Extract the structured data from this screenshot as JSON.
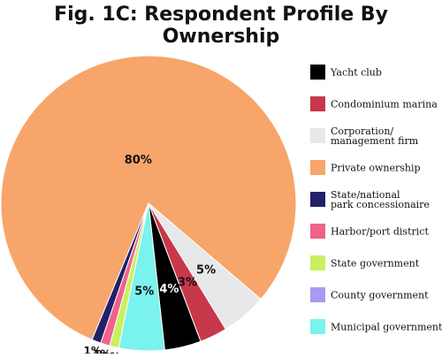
{
  "chart_data": {
    "type": "pie",
    "title": "Fig. 1C: Respondent Profile By Ownership",
    "slices": [
      {
        "name": "Yacht club",
        "label_lines": [
          "Yacht club"
        ],
        "value": 4,
        "data_label": "4%",
        "color": "#000000",
        "label_color": "#ffffff"
      },
      {
        "name": "Condominium marina",
        "label_lines": [
          "Condominium marina"
        ],
        "value": 3,
        "data_label": "3%",
        "color": "#c8384b",
        "label_color": "#111111"
      },
      {
        "name": "Corporation/management firm",
        "label_lines": [
          "Corporation/",
          "management firm"
        ],
        "value": 5,
        "data_label": "5%",
        "color": "#e6e8ea",
        "label_color": "#111111"
      },
      {
        "name": "Private ownership",
        "label_lines": [
          "Private ownership"
        ],
        "value": 80,
        "data_label": "80%",
        "color": "#f7a56a",
        "label_color": "#111111"
      },
      {
        "name": "State/national park concessionaire",
        "label_lines": [
          "State/national",
          "park concessionaire"
        ],
        "value": 1,
        "data_label": "1%",
        "color": "#231f6b",
        "label_color": "#111111"
      },
      {
        "name": "Harbor/port district",
        "label_lines": [
          "Harbor/port district"
        ],
        "value": 1,
        "data_label": "1%",
        "color": "#f0628a",
        "label_color": "#111111"
      },
      {
        "name": "State government",
        "label_lines": [
          "State government"
        ],
        "value": 1,
        "data_label": "1%",
        "color": "#c8f060",
        "label_color": "#111111"
      },
      {
        "name": "County government",
        "label_lines": [
          "County government"
        ],
        "value": 0,
        "data_label": "",
        "color": "#a79af2",
        "label_color": "#111111"
      },
      {
        "name": "Municipal government",
        "label_lines": [
          "Municipal government"
        ],
        "value": 5,
        "data_label": "5%",
        "color": "#7af2ee",
        "label_color": "#111111"
      }
    ],
    "pie_order": [
      "Private ownership",
      "Corporation/management firm",
      "Condominium marina",
      "Yacht club",
      "Municipal government",
      "State government",
      "Harbor/port district",
      "State/national park concessionaire"
    ],
    "legend_position": "right"
  }
}
